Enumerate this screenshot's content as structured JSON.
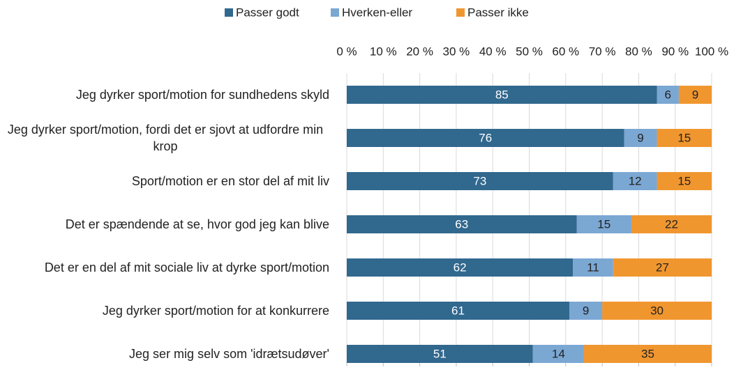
{
  "chart_data": {
    "type": "stacked-barh",
    "categories": [
      "Jeg dyrker sport/motion for sundhedens skyld",
      "Jeg dyrker sport/motion, fordi det er sjovt at udfordre min krop",
      "Sport/motion er en stor del af mit liv",
      "Det er spændende at se, hvor god jeg kan blive",
      "Det er en del af mit sociale liv at dyrke sport/motion",
      "Jeg dyrker sport/motion for at konkurrere",
      "Jeg ser mig selv som 'idrætsudøver'"
    ],
    "series": [
      {
        "name": "Passer godt",
        "color": "#31688e",
        "values": [
          85,
          76,
          73,
          63,
          62,
          61,
          51
        ]
      },
      {
        "name": "Hverken-eller",
        "color": "#7ba7d3",
        "values": [
          6,
          9,
          12,
          15,
          11,
          9,
          14
        ]
      },
      {
        "name": "Passer ikke",
        "color": "#f0962f",
        "values": [
          9,
          15,
          15,
          22,
          27,
          30,
          35
        ]
      }
    ],
    "xlim": [
      0,
      100
    ],
    "xticks": [
      {
        "value": 0,
        "label": "0 %"
      },
      {
        "value": 10,
        "label": "10 %"
      },
      {
        "value": 20,
        "label": "20 %"
      },
      {
        "value": 30,
        "label": "30 %"
      },
      {
        "value": 40,
        "label": "40 %"
      },
      {
        "value": 50,
        "label": "50 %"
      },
      {
        "value": 60,
        "label": "60 %"
      },
      {
        "value": 70,
        "label": "70 %"
      },
      {
        "value": 80,
        "label": "80 %"
      },
      {
        "value": 90,
        "label": "90 %"
      },
      {
        "value": 100,
        "label": "100 %"
      }
    ],
    "grid": true,
    "legend": "top"
  }
}
